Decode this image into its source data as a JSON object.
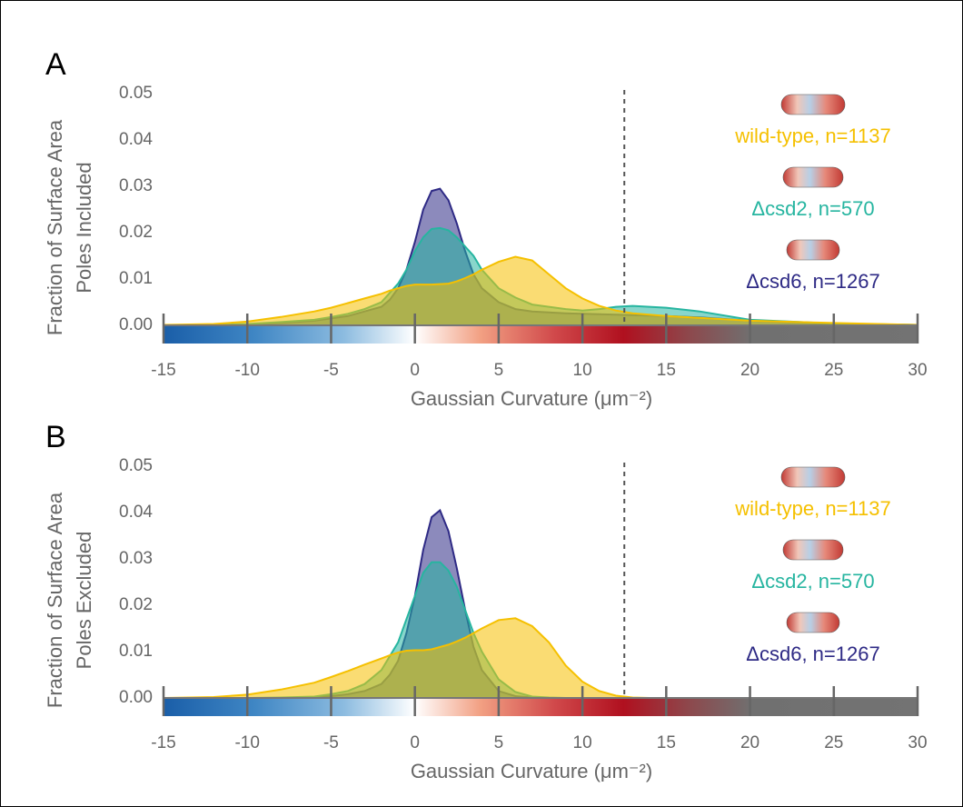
{
  "chart_data": [
    {
      "type": "area",
      "panel": "A",
      "y_label": [
        "Fraction of Surface Area",
        "Poles Included"
      ],
      "x_label": "Gaussian Curvature (μm⁻²)",
      "x": [
        -15,
        -12,
        -10,
        -8,
        -6,
        -5,
        -4,
        -3,
        -2,
        -1.5,
        -1,
        -0.5,
        0,
        0.5,
        1,
        1.5,
        2,
        2.5,
        3,
        3.5,
        4,
        5,
        6,
        7,
        8,
        9,
        10,
        11,
        12,
        13,
        14,
        15,
        17,
        20,
        25,
        30
      ],
      "series": [
        {
          "name": "Δcsd6, n=1267",
          "color": "#2e2a85",
          "values": [
            0,
            0,
            0.0002,
            0.0005,
            0.001,
            0.0015,
            0.002,
            0.003,
            0.004,
            0.0055,
            0.008,
            0.012,
            0.018,
            0.025,
            0.029,
            0.0295,
            0.027,
            0.022,
            0.016,
            0.011,
            0.008,
            0.005,
            0.0035,
            0.003,
            0.0028,
            0.0026,
            0.0025,
            0.0024,
            0.0023,
            0.0022,
            0.0021,
            0.002,
            0.0017,
            0.001,
            0.0003,
            0.0001
          ]
        },
        {
          "name": "Δcsd2, n=570",
          "color": "#26b5a0",
          "values": [
            0,
            0.0001,
            0.0003,
            0.0007,
            0.0012,
            0.0018,
            0.0025,
            0.0035,
            0.005,
            0.007,
            0.009,
            0.012,
            0.016,
            0.019,
            0.0208,
            0.021,
            0.0205,
            0.019,
            0.017,
            0.015,
            0.012,
            0.008,
            0.006,
            0.0045,
            0.004,
            0.0035,
            0.0032,
            0.0035,
            0.004,
            0.0042,
            0.004,
            0.0038,
            0.003,
            0.0012,
            0.0004,
            0.0001
          ]
        },
        {
          "name": "wild-type, n=1137",
          "color": "#f5c000",
          "values": [
            0.0001,
            0.0003,
            0.0008,
            0.0018,
            0.003,
            0.0038,
            0.0048,
            0.0058,
            0.0068,
            0.0075,
            0.008,
            0.0085,
            0.0088,
            0.0088,
            0.0088,
            0.0089,
            0.009,
            0.0095,
            0.0102,
            0.011,
            0.012,
            0.0137,
            0.0148,
            0.014,
            0.011,
            0.008,
            0.0058,
            0.0042,
            0.0032,
            0.0026,
            0.0023,
            0.002,
            0.0016,
            0.001,
            0.0005,
            0.0001
          ]
        }
      ],
      "threshold": 12.5,
      "xlim": [
        -15,
        30
      ],
      "xticks": [
        -15,
        -10,
        -5,
        0,
        5,
        10,
        15,
        20,
        25,
        30
      ],
      "ylim": [
        0,
        0.05
      ],
      "yticks": [
        {
          "value": 0,
          "label": "0.00"
        },
        {
          "value": 0.01,
          "label": "0.01"
        },
        {
          "value": 0.02,
          "label": "0.02"
        },
        {
          "value": 0.03,
          "label": "0.03"
        },
        {
          "value": 0.04,
          "label": "0.04"
        },
        {
          "value": 0.05,
          "label": "0.05"
        }
      ]
    },
    {
      "type": "area",
      "panel": "B",
      "y_label": [
        "Fraction of Surface Area",
        "Poles Excluded"
      ],
      "x_label": "Gaussian Curvature (μm⁻²)",
      "x": [
        -15,
        -12,
        -10,
        -8,
        -6,
        -5,
        -4,
        -3,
        -2,
        -1.5,
        -1,
        -0.5,
        0,
        0.5,
        1,
        1.5,
        2,
        2.5,
        3,
        3.5,
        4,
        5,
        6,
        7,
        8,
        9,
        10,
        11,
        12,
        13,
        14,
        15,
        17,
        20,
        25,
        30
      ],
      "series": [
        {
          "name": "Δcsd6, n=1267",
          "color": "#2e2a85",
          "values": [
            0,
            0,
            0,
            0,
            0.0002,
            0.0004,
            0.0008,
            0.0015,
            0.003,
            0.005,
            0.008,
            0.014,
            0.022,
            0.032,
            0.039,
            0.0405,
            0.036,
            0.028,
            0.019,
            0.011,
            0.006,
            0.0015,
            0.0004,
            0.0001,
            0,
            0,
            0,
            0,
            0,
            0,
            0,
            0,
            0,
            0,
            0,
            0
          ]
        },
        {
          "name": "Δcsd2, n=570",
          "color": "#26b5a0",
          "values": [
            0,
            0,
            0,
            0.0001,
            0.0003,
            0.0008,
            0.0015,
            0.003,
            0.006,
            0.009,
            0.012,
            0.017,
            0.022,
            0.027,
            0.0293,
            0.0293,
            0.0275,
            0.024,
            0.019,
            0.014,
            0.01,
            0.004,
            0.0013,
            0.0003,
            0.0001,
            0,
            0,
            0,
            0,
            0,
            0,
            0,
            0,
            0,
            0,
            0
          ]
        },
        {
          "name": "wild-type, n=1137",
          "color": "#f5c000",
          "values": [
            0,
            0.0002,
            0.0007,
            0.0018,
            0.0033,
            0.0045,
            0.0058,
            0.0072,
            0.0085,
            0.0092,
            0.0098,
            0.0102,
            0.0103,
            0.0103,
            0.0105,
            0.011,
            0.0115,
            0.0122,
            0.013,
            0.014,
            0.015,
            0.0168,
            0.0172,
            0.0155,
            0.012,
            0.007,
            0.0035,
            0.0015,
            0.0005,
            0.0001,
            0,
            0,
            0,
            0,
            0,
            0
          ]
        }
      ],
      "threshold": 12.5,
      "xlim": [
        -15,
        30
      ],
      "xticks": [
        -15,
        -10,
        -5,
        0,
        5,
        10,
        15,
        20,
        25,
        30
      ],
      "ylim": [
        0,
        0.05
      ],
      "yticks": [
        {
          "value": 0,
          "label": "0.00"
        },
        {
          "value": 0.01,
          "label": "0.01"
        },
        {
          "value": 0.02,
          "label": "0.02"
        },
        {
          "value": 0.03,
          "label": "0.03"
        },
        {
          "value": 0.04,
          "label": "0.04"
        },
        {
          "value": 0.05,
          "label": "0.05"
        }
      ]
    }
  ]
}
